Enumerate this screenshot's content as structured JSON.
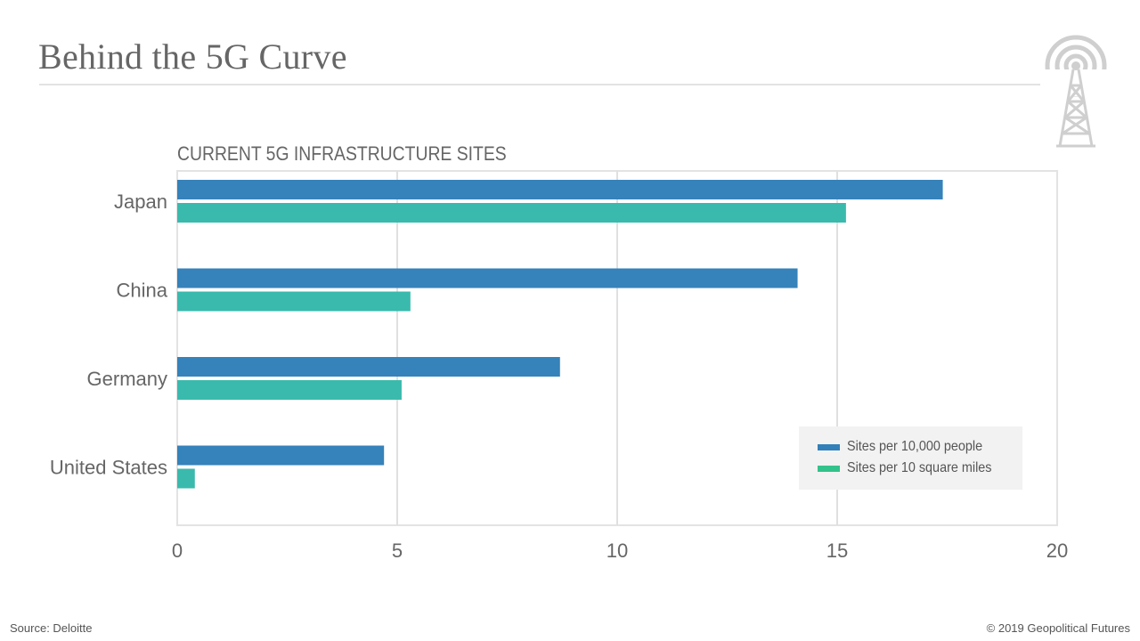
{
  "header": {
    "title": "Behind the 5G Curve",
    "logo_icon": "radio-tower-icon"
  },
  "footer": {
    "source": "Source: Deloitte",
    "copyright": "© 2019 Geopolitical Futures"
  },
  "colors": {
    "series1": "#3280b9",
    "series2": "#35b9ab",
    "legend_series2": "#33c28b",
    "grid": "#e0e0e0",
    "text": "#666666"
  },
  "chart_data": {
    "type": "bar",
    "orientation": "horizontal",
    "title": "CURRENT 5G INFRASTRUCTURE SITES",
    "categories": [
      "Japan",
      "China",
      "Germany",
      "United States"
    ],
    "series": [
      {
        "name": "Sites per 10,000 people",
        "values": [
          17.4,
          14.1,
          8.7,
          4.7
        ]
      },
      {
        "name": "Sites per 10 square miles",
        "values": [
          15.2,
          5.3,
          5.1,
          0.4
        ]
      }
    ],
    "xlabel": "",
    "ylabel": "",
    "xlim": [
      0,
      20
    ],
    "xticks": [
      "0",
      "5",
      "10",
      "15",
      "20"
    ],
    "grid": true,
    "legend_position": "bottom-right"
  }
}
